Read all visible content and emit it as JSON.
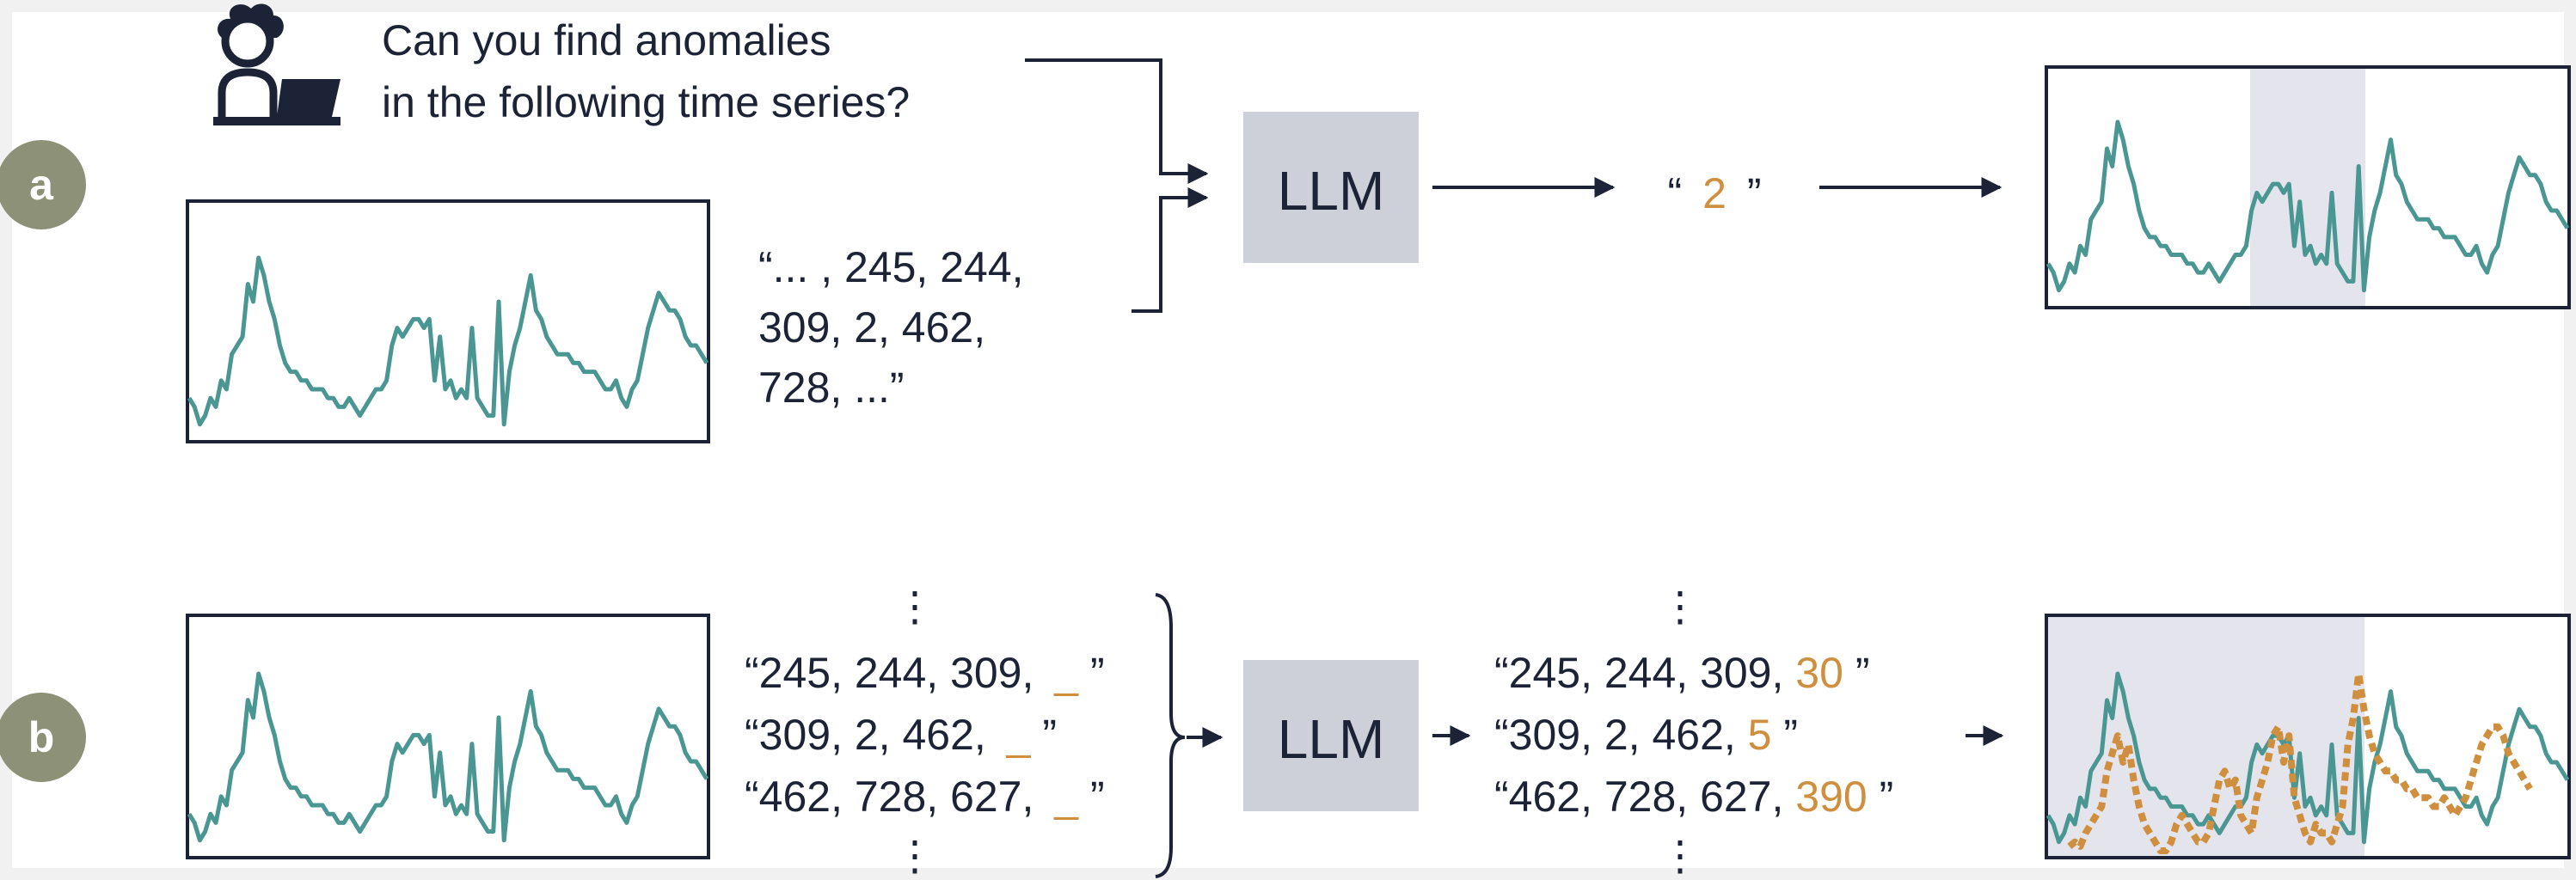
{
  "colors": {
    "background": "#ffffff",
    "frame": "#f1f1f1",
    "ink": "#1c2337",
    "teal": "#4a9693",
    "orange": "#cf8f3e",
    "badge": "#8c9178",
    "llm_box": "#cdd0d9",
    "highlight": "#e4e5ec"
  },
  "row_a": {
    "badge": "a",
    "question_line1": "Can you find anomalies",
    "question_line2": "in the following time series?",
    "sequence_line1": "“... , 245, 244,",
    "sequence_line2": "309, 2, 462,",
    "sequence_line3": "728, ...”",
    "llm_label": "LLM",
    "answer_open": "“",
    "answer_value": "2",
    "answer_close": "”"
  },
  "row_b": {
    "badge": "b",
    "dots": "⋮",
    "prompts": [
      {
        "prefix": "“245, 244, 309,",
        "blank": "_",
        "suffix": "”"
      },
      {
        "prefix": "“309, 2, 462,",
        "blank": "_",
        "suffix": "”"
      },
      {
        "prefix": "“462, 728, 627,",
        "blank": "_",
        "suffix": "”"
      }
    ],
    "llm_label": "LLM",
    "predictions": [
      {
        "prefix": "“245, 244, 309, ",
        "value": "30",
        "suffix": "”"
      },
      {
        "prefix": "“309, 2, 462, ",
        "value": "5",
        "suffix": "”"
      },
      {
        "prefix": "“462, 728, 627, ",
        "value": "390",
        "suffix": "”"
      }
    ]
  },
  "series": {
    "observed": [
      4,
      3,
      1,
      2,
      4,
      3,
      6,
      5,
      9,
      10,
      11,
      17,
      15,
      20,
      18,
      15,
      13,
      10,
      8,
      7,
      7,
      6,
      6,
      5,
      5,
      5,
      4,
      4,
      3,
      3,
      4,
      3,
      2,
      3,
      4,
      5,
      5,
      6,
      10,
      12,
      11,
      12,
      13,
      13,
      12,
      13,
      6,
      11,
      5,
      6,
      4,
      5,
      4,
      12,
      4,
      3,
      2,
      2,
      15,
      1,
      7,
      10,
      12,
      15,
      18,
      14,
      13,
      11,
      10,
      9,
      9,
      9,
      8,
      8,
      7,
      7,
      7,
      6,
      5,
      5,
      6,
      4,
      3,
      5,
      6,
      9,
      12,
      14,
      16,
      15,
      14,
      14,
      13,
      11,
      10,
      10,
      9,
      8
    ],
    "predicted": [
      0.5,
      1,
      0.5,
      2,
      3,
      4,
      5,
      9,
      11,
      13,
      10,
      12,
      8,
      5,
      3,
      2,
      1,
      0,
      0,
      1,
      3,
      4,
      3,
      2,
      1,
      1,
      2,
      5,
      8,
      9,
      7,
      8,
      4,
      3,
      2,
      6,
      8,
      10,
      13,
      14,
      10,
      13,
      6,
      4,
      2,
      1,
      3,
      2,
      2,
      1,
      3,
      5,
      12,
      15,
      20,
      16,
      13,
      11,
      10,
      9,
      9,
      8,
      8,
      7,
      7,
      6,
      6,
      6,
      5,
      5,
      6,
      5,
      4,
      5,
      6,
      8,
      10,
      12,
      13,
      14,
      14,
      13,
      11,
      10,
      9,
      8,
      7
    ],
    "predicted_offset": 4
  }
}
